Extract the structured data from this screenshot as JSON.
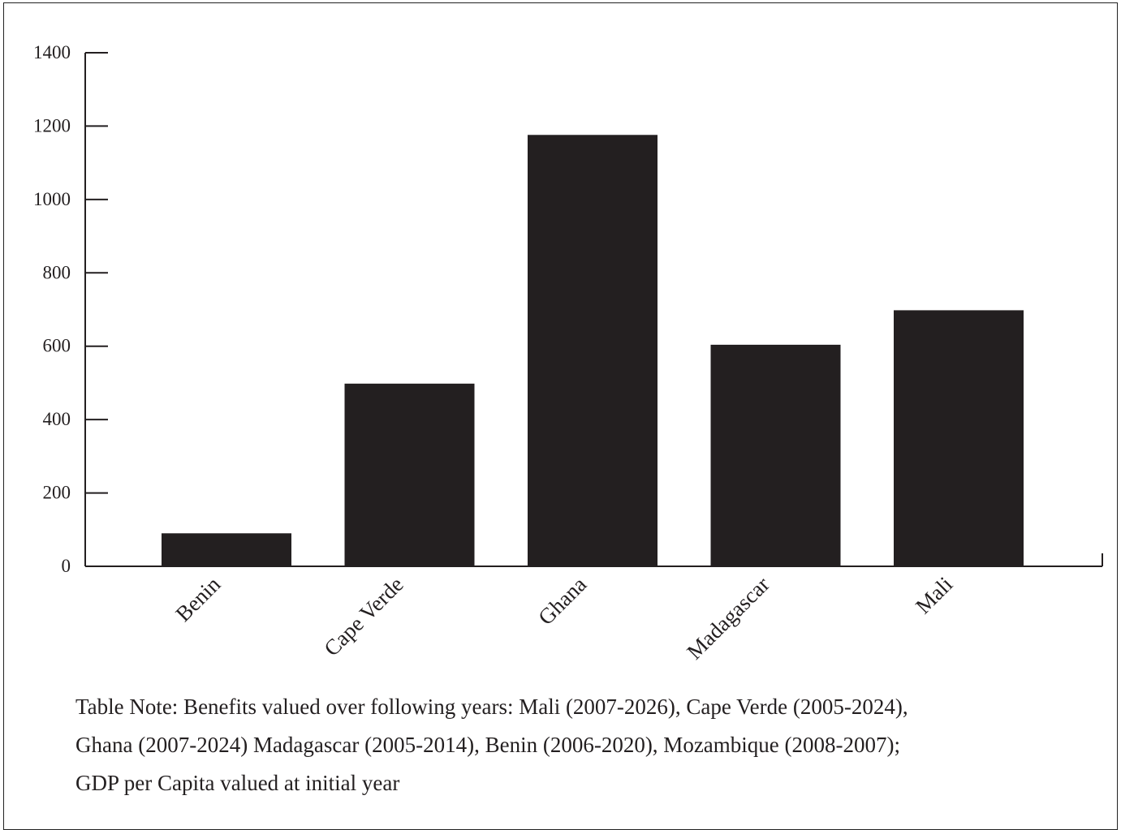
{
  "chart_data": {
    "type": "bar",
    "categories": [
      "Benin",
      "Cape Verde",
      "Ghana",
      "Madagascar",
      "Mali"
    ],
    "values": [
      90,
      498,
      1176,
      604,
      698
    ],
    "ylim": [
      0,
      1400
    ],
    "yticks": [
      0,
      200,
      400,
      600,
      800,
      1000,
      1200,
      1400
    ],
    "title": "",
    "xlabel": "",
    "ylabel": "",
    "grid": false,
    "legend": "none",
    "bar_color": "#231f20",
    "axis_color": "#231f20"
  },
  "note": {
    "lines": [
      "Table Note:  Benefits valued over following years:  Mali (2007-2026), Cape Verde (2005-2024),",
      "Ghana (2007-2024) Madagascar (2005-2014), Benin (2006-2020), Mozambique (2008-2007);",
      "GDP per Capita valued at initial year"
    ]
  }
}
